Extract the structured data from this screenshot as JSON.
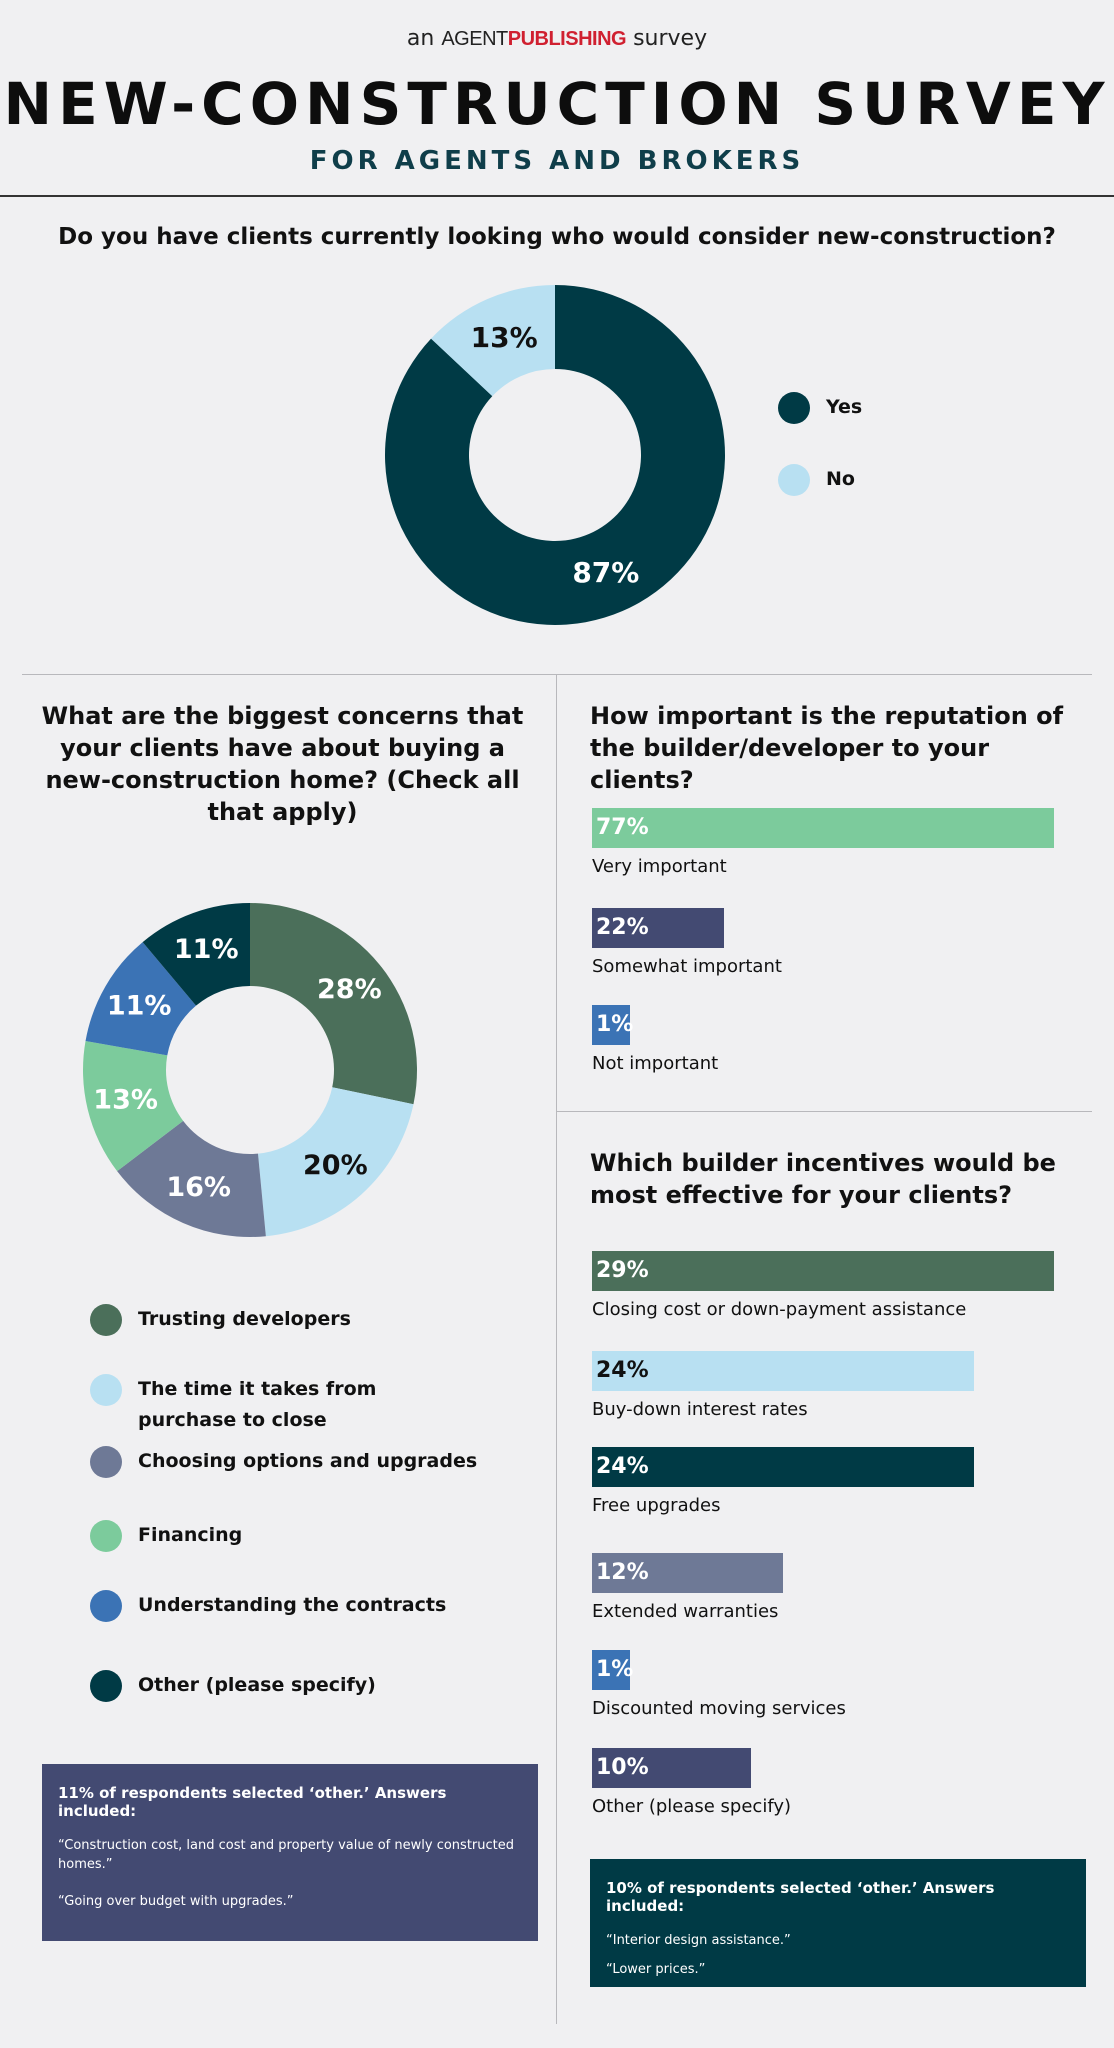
{
  "header": {
    "pre": "an",
    "brand_part1": "AGENT",
    "brand_part2": "PUBLISHING",
    "post": "survey",
    "title": "NEW-CONSTRUCTION SURVEY",
    "subtitle": "FOR AGENTS AND BROKERS"
  },
  "chart_data": [
    {
      "type": "pie",
      "title": "Do you have clients currently looking who would consider new-construction?",
      "categories": [
        "Yes",
        "No"
      ],
      "values": [
        87,
        13
      ],
      "labels": [
        "87%",
        "13%"
      ],
      "colors": [
        "#003a45",
        "#b8e0f2"
      ],
      "legend": "right"
    },
    {
      "type": "pie",
      "title": "What are the biggest concerns that your clients have about buying a new-construction home? (Check all that apply)",
      "categories": [
        "Trusting developers",
        "The time it takes from purchase to close",
        "Choosing options and upgrades",
        "Financing",
        "Understanding the contracts",
        "Other (please specify)"
      ],
      "values": [
        28,
        20,
        16,
        13,
        11,
        11
      ],
      "labels": [
        "28%",
        "20%",
        "16%",
        "13%",
        "11%",
        "11%"
      ],
      "colors": [
        "#4b6f5a",
        "#b8e0f2",
        "#6e7996",
        "#7ccb9c",
        "#3b73b5",
        "#003a45"
      ],
      "label_colors": [
        "#ffffff",
        "#111111",
        "#ffffff",
        "#ffffff",
        "#ffffff",
        "#ffffff"
      ],
      "legend": "bottom"
    },
    {
      "type": "bar",
      "title": "How important is the reputation of the builder/developer to your clients?",
      "categories": [
        "Very important",
        "Somewhat important",
        "Not important"
      ],
      "values": [
        77,
        22,
        1
      ],
      "labels": [
        "77%",
        "22%",
        "1%"
      ],
      "colors": [
        "#7ccb9c",
        "#434a72",
        "#3b73b5"
      ],
      "label_colors": [
        "#ffffff",
        "#ffffff",
        "#ffffff"
      ]
    },
    {
      "type": "bar",
      "title": "Which builder incentives would be most effective for your clients?",
      "categories": [
        "Closing cost or down-payment assistance",
        "Buy-down interest rates",
        "Free upgrades",
        "Extended warranties",
        "Discounted moving services",
        "Other (please specify)"
      ],
      "values": [
        29,
        24,
        24,
        12,
        1,
        10
      ],
      "labels": [
        "29%",
        "24%",
        "24%",
        "12%",
        "1%",
        "10%"
      ],
      "colors": [
        "#4b6f5a",
        "#b8e0f2",
        "#003a45",
        "#6e7996",
        "#3b73b5",
        "#434a72"
      ],
      "label_colors": [
        "#ffffff",
        "#111111",
        "#ffffff",
        "#ffffff",
        "#ffffff",
        "#ffffff"
      ]
    }
  ],
  "notes": {
    "concerns": {
      "heading": "11% of respondents selected ‘other.’ Answers included:",
      "lines": [
        "“Construction cost, land cost and property value of newly constructed homes.”",
        "“Going over budget with upgrades.”"
      ],
      "color": "#434a72"
    },
    "incentives": {
      "heading": "10% of respondents selected ‘other.’ Answers included:",
      "lines": [
        "“Interior design assistance.”",
        "“Lower prices.”"
      ],
      "color": "#003a45"
    }
  }
}
